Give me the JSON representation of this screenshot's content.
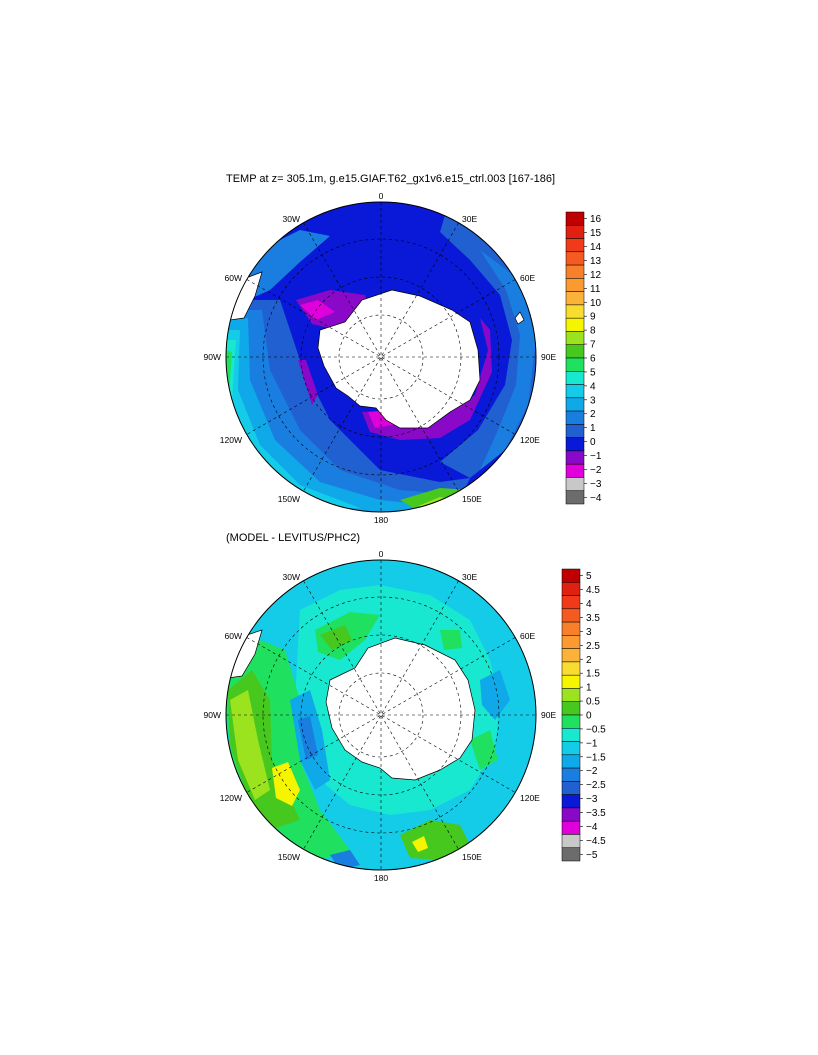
{
  "chart_data": [
    {
      "type": "heatmap",
      "projection": "south-polar-stereographic",
      "title": "TEMP at z= 305.1m, g.e15.GIAF.T62_gx1v6.e15_ctrl.003 [167-186]",
      "lon_labels": [
        "0",
        "30E",
        "60E",
        "90E",
        "120E",
        "150E",
        "180",
        "150W",
        "120W",
        "90W",
        "60W",
        "30W"
      ],
      "colorbar": {
        "ticks": [
          "16",
          "15",
          "14",
          "13",
          "12",
          "11",
          "10",
          "9",
          "8",
          "7",
          "6",
          "5",
          "4",
          "3",
          "2",
          "1",
          "0",
          "−1",
          "−2",
          "−3",
          "−4"
        ],
        "colors": [
          "#c00000",
          "#e02010",
          "#f03a1a",
          "#f55a20",
          "#f8802a",
          "#fa9a30",
          "#fbb238",
          "#f8dc30",
          "#f5f500",
          "#9be21f",
          "#46c81e",
          "#20e060",
          "#18e8d0",
          "#14cce8",
          "#0fa8e8",
          "#1a7ee0",
          "#2060d0",
          "#0a18d8",
          "#8a08c8",
          "#e000dc",
          "#c8c8c8",
          "#6c6c6c"
        ],
        "range": [
          -4,
          16
        ],
        "interval": 1
      },
      "zones": [
        {
          "label": "0",
          "color": "#0a18d8"
        },
        {
          "label": "1",
          "color": "#2060d0"
        },
        {
          "label": "2",
          "color": "#1a7ee0"
        },
        {
          "label": "3",
          "color": "#0fa8e8"
        },
        {
          "label": "4",
          "color": "#14cce8"
        },
        {
          "label": "5",
          "color": "#18e8d0"
        },
        {
          "label": "6",
          "color": "#20e060"
        },
        {
          "label": "7",
          "color": "#46c81e"
        },
        {
          "label": "8",
          "color": "#9be21f"
        },
        {
          "label": "−1",
          "color": "#8a08c8"
        },
        {
          "label": "−2",
          "color": "#e000dc"
        }
      ]
    },
    {
      "type": "heatmap",
      "projection": "south-polar-stereographic",
      "title": "(MODEL - LEVITUS/PHC2)",
      "lon_labels": [
        "0",
        "30E",
        "60E",
        "90E",
        "120E",
        "150E",
        "180",
        "150W",
        "120W",
        "90W",
        "60W",
        "30W"
      ],
      "colorbar": {
        "ticks": [
          "5",
          "4.5",
          "4",
          "3.5",
          "3",
          "2.5",
          "2",
          "1.5",
          "1",
          "0.5",
          "0",
          "−0.5",
          "−1",
          "−1.5",
          "−2",
          "−2.5",
          "−3",
          "−3.5",
          "−4",
          "−4.5",
          "−5"
        ],
        "colors": [
          "#c00000",
          "#e02010",
          "#f03a1a",
          "#f55a20",
          "#f8802a",
          "#fa9a30",
          "#fbb238",
          "#f8dc30",
          "#f5f500",
          "#9be21f",
          "#46c81e",
          "#20e060",
          "#18e8d0",
          "#14cce8",
          "#0fa8e8",
          "#1a7ee0",
          "#2060d0",
          "#0a18d8",
          "#8a08c8",
          "#e000dc",
          "#c8c8c8",
          "#6c6c6c"
        ],
        "range": [
          -5,
          5
        ],
        "interval": 0.5
      },
      "zones": [
        {
          "label": "0",
          "color": "#20e060"
        },
        {
          "label": "−0.5",
          "color": "#18e8d0"
        },
        {
          "label": "−1",
          "color": "#14cce8"
        },
        {
          "label": "0.5",
          "color": "#46c81e"
        },
        {
          "label": "1",
          "color": "#9be21f"
        },
        {
          "label": "1.5",
          "color": "#f5f500"
        },
        {
          "label": "−1.5",
          "color": "#0fa8e8"
        },
        {
          "label": "−2",
          "color": "#1a7ee0"
        }
      ]
    }
  ],
  "colors": {
    "land": "#ffffff",
    "coast": "#000000",
    "graticule": "#000000"
  }
}
